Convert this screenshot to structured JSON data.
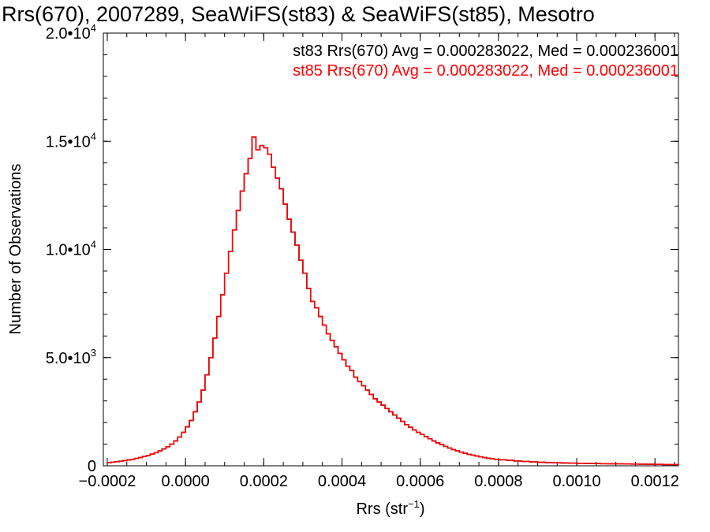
{
  "chart_data": {
    "type": "histogram",
    "title": "Rrs(670), 2007289, SeaWiFS(st83) & SeaWiFS(st85), Mesotro",
    "xlabel": {
      "base": "Rrs (str",
      "sup": "−1",
      "tail": ")"
    },
    "ylabel": "Number of Observations",
    "xlim": [
      -0.00021,
      0.00126
    ],
    "ylim": [
      0,
      20000
    ],
    "x_ticks": [
      -0.0002,
      0.0,
      0.0002,
      0.0004,
      0.0006,
      0.0008,
      0.001,
      0.0012
    ],
    "x_tick_labels": [
      "−0.0002",
      "0.0000",
      "0.0002",
      "0.0004",
      "0.0006",
      "0.0008",
      "0.0010",
      "0.0012"
    ],
    "y_ticks": [
      0,
      5000,
      10000,
      15000,
      20000
    ],
    "y_tick_labels": [
      {
        "base": "0",
        "sup": ""
      },
      {
        "base": "5.0•10",
        "sup": "3"
      },
      {
        "base": "1.0•10",
        "sup": "4"
      },
      {
        "base": "1.5•10",
        "sup": "4"
      },
      {
        "base": "2.0•10",
        "sup": "4"
      }
    ],
    "grid": false,
    "legend_position": "top-right",
    "series": [
      {
        "name": "st83 Rrs(670) Avg = 0.000283022, Med = 0.000236001",
        "color": "#000000",
        "bins": [
          [
            -0.0002,
            150
          ],
          [
            -0.00019,
            170
          ],
          [
            -0.00018,
            190
          ],
          [
            -0.00017,
            210
          ],
          [
            -0.00016,
            240
          ],
          [
            -0.00015,
            270
          ],
          [
            -0.00014,
            300
          ],
          [
            -0.00013,
            340
          ],
          [
            -0.00012,
            380
          ],
          [
            -0.00011,
            430
          ],
          [
            -0.0001,
            480
          ],
          [
            -9e-05,
            540
          ],
          [
            -8e-05,
            610
          ],
          [
            -7e-05,
            690
          ],
          [
            -6e-05,
            780
          ],
          [
            -5e-05,
            880
          ],
          [
            -4e-05,
            1000
          ],
          [
            -3e-05,
            1150
          ],
          [
            -2e-05,
            1330
          ],
          [
            -1e-05,
            1550
          ],
          [
            0.0,
            1800
          ],
          [
            1e-05,
            2100
          ],
          [
            2e-05,
            2500
          ],
          [
            3e-05,
            2950
          ],
          [
            4e-05,
            3500
          ],
          [
            5e-05,
            4200
          ],
          [
            6e-05,
            5000
          ],
          [
            7e-05,
            5900
          ],
          [
            8e-05,
            6900
          ],
          [
            9e-05,
            7900
          ],
          [
            0.0001,
            8900
          ],
          [
            0.00011,
            9900
          ],
          [
            0.00012,
            10900
          ],
          [
            0.00013,
            11800
          ],
          [
            0.00014,
            12700
          ],
          [
            0.00015,
            13500
          ],
          [
            0.00016,
            14200
          ],
          [
            0.00017,
            15200
          ],
          [
            0.00018,
            14600
          ],
          [
            0.00019,
            14800
          ],
          [
            0.0002,
            14700
          ],
          [
            0.00021,
            14400
          ],
          [
            0.00022,
            13800
          ],
          [
            0.00023,
            13300
          ],
          [
            0.00024,
            12800
          ],
          [
            0.00025,
            12100
          ],
          [
            0.00026,
            11400
          ],
          [
            0.00027,
            10800
          ],
          [
            0.00028,
            10200
          ],
          [
            0.00029,
            9500
          ],
          [
            0.0003,
            8900
          ],
          [
            0.00031,
            8200
          ],
          [
            0.00032,
            7600
          ],
          [
            0.00033,
            7300
          ],
          [
            0.00034,
            6900
          ],
          [
            0.00035,
            6500
          ],
          [
            0.00036,
            6100
          ],
          [
            0.00037,
            5800
          ],
          [
            0.00038,
            5500
          ],
          [
            0.00039,
            5200
          ],
          [
            0.0004,
            4900
          ],
          [
            0.00041,
            4600
          ],
          [
            0.00042,
            4400
          ],
          [
            0.00043,
            4100
          ],
          [
            0.00044,
            3900
          ],
          [
            0.00045,
            3700
          ],
          [
            0.00046,
            3500
          ],
          [
            0.00047,
            3300
          ],
          [
            0.00048,
            3100
          ],
          [
            0.00049,
            2950
          ],
          [
            0.0005,
            2800
          ],
          [
            0.00051,
            2650
          ],
          [
            0.00052,
            2500
          ],
          [
            0.00053,
            2350
          ],
          [
            0.00054,
            2200
          ],
          [
            0.00055,
            2050
          ],
          [
            0.00056,
            1900
          ],
          [
            0.00057,
            1780
          ],
          [
            0.00058,
            1660
          ],
          [
            0.00059,
            1550
          ],
          [
            0.0006,
            1450
          ],
          [
            0.00061,
            1350
          ],
          [
            0.00062,
            1250
          ],
          [
            0.00063,
            1150
          ],
          [
            0.00064,
            1060
          ],
          [
            0.00065,
            980
          ],
          [
            0.00066,
            900
          ],
          [
            0.00067,
            820
          ],
          [
            0.00068,
            750
          ],
          [
            0.00069,
            690
          ],
          [
            0.0007,
            630
          ],
          [
            0.00071,
            580
          ],
          [
            0.00072,
            530
          ],
          [
            0.00073,
            490
          ],
          [
            0.00074,
            450
          ],
          [
            0.00075,
            410
          ],
          [
            0.00076,
            380
          ],
          [
            0.00077,
            350
          ],
          [
            0.00078,
            320
          ],
          [
            0.00079,
            300
          ],
          [
            0.0008,
            280
          ],
          [
            0.00082,
            250
          ],
          [
            0.00084,
            220
          ],
          [
            0.00086,
            200
          ],
          [
            0.00088,
            180
          ],
          [
            0.0009,
            160
          ],
          [
            0.00092,
            150
          ],
          [
            0.00094,
            140
          ],
          [
            0.00096,
            130
          ],
          [
            0.00098,
            120
          ],
          [
            0.001,
            115
          ],
          [
            0.00102,
            110
          ],
          [
            0.00104,
            105
          ],
          [
            0.00106,
            100
          ],
          [
            0.00108,
            95
          ],
          [
            0.0011,
            90
          ],
          [
            0.00112,
            85
          ],
          [
            0.00114,
            80
          ],
          [
            0.00116,
            75
          ],
          [
            0.00118,
            70
          ],
          [
            0.0012,
            65
          ],
          [
            0.00122,
            60
          ],
          [
            0.00124,
            55
          ],
          [
            0.00126,
            50
          ]
        ]
      },
      {
        "name": "st85 Rrs(670) Avg = 0.000283022, Med = 0.000236001",
        "color": "#ff0000",
        "same_as": "st83"
      }
    ]
  }
}
